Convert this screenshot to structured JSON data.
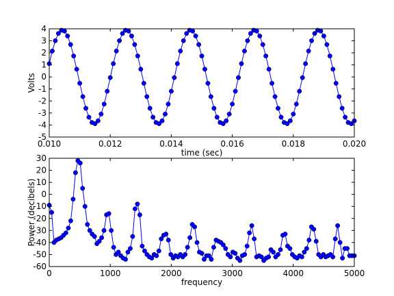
{
  "chart_data": [
    {
      "type": "line",
      "x_label": "time (sec)",
      "y_label": "Volts",
      "color": "#0000ff",
      "x": [
        0.01,
        0.0101,
        0.0102,
        0.0103,
        0.0104,
        0.0105,
        0.0106,
        0.0107,
        0.0108,
        0.0109,
        0.011,
        0.0111,
        0.0112,
        0.0113,
        0.0114,
        0.0115,
        0.0116,
        0.0117,
        0.0118,
        0.0119,
        0.012,
        0.0121,
        0.0122,
        0.0123,
        0.0124,
        0.0125,
        0.0126,
        0.0127,
        0.0128,
        0.0129,
        0.013,
        0.0131,
        0.0132,
        0.0133,
        0.0134,
        0.0135,
        0.0136,
        0.0137,
        0.0138,
        0.0139,
        0.014,
        0.0141,
        0.0142,
        0.0143,
        0.0144,
        0.0145,
        0.0146,
        0.0147,
        0.0148,
        0.0149,
        0.015,
        0.0151,
        0.0152,
        0.0153,
        0.0154,
        0.0155,
        0.0156,
        0.0157,
        0.0158,
        0.0159,
        0.016,
        0.0161,
        0.0162,
        0.0163,
        0.0164,
        0.0165,
        0.0166,
        0.0167,
        0.0168,
        0.0169,
        0.017,
        0.0171,
        0.0172,
        0.0173,
        0.0174,
        0.0175,
        0.0176,
        0.0177,
        0.0178,
        0.0179,
        0.018,
        0.0181,
        0.0182,
        0.0183,
        0.0184,
        0.0185,
        0.0186,
        0.0187,
        0.0188,
        0.0189,
        0.019,
        0.0191,
        0.0192,
        0.0193,
        0.0194,
        0.0195,
        0.0196,
        0.0197,
        0.0198,
        0.0199,
        0.02
      ],
      "values": [
        1.1,
        2.15,
        3.01,
        3.61,
        3.88,
        3.81,
        3.4,
        2.69,
        1.74,
        0.64,
        -0.53,
        -1.64,
        -2.61,
        -3.35,
        -3.79,
        -3.89,
        -3.65,
        -3.09,
        -2.26,
        -1.19,
        -0.06,
        1.1,
        2.15,
        3.01,
        3.61,
        3.88,
        3.81,
        3.4,
        2.69,
        1.74,
        0.64,
        -0.53,
        -1.64,
        -2.61,
        -3.35,
        -3.79,
        -3.89,
        -3.65,
        -3.09,
        -2.26,
        -1.19,
        -0.06,
        1.1,
        2.15,
        3.01,
        3.61,
        3.88,
        3.81,
        3.4,
        2.69,
        1.74,
        0.64,
        -0.53,
        -1.64,
        -2.61,
        -3.35,
        -3.79,
        -3.89,
        -3.65,
        -3.09,
        -2.26,
        -1.19,
        -0.06,
        1.1,
        2.15,
        3.01,
        3.61,
        3.88,
        3.81,
        3.4,
        2.69,
        1.74,
        0.64,
        -0.53,
        -1.64,
        -2.61,
        -3.35,
        -3.79,
        -3.89,
        -3.65,
        -3.09,
        -2.26,
        -1.19,
        -0.06,
        1.1,
        2.15,
        3.01,
        3.61,
        3.88,
        3.81,
        3.4,
        2.69,
        1.74,
        0.64,
        -0.53,
        -1.64,
        -2.61,
        -3.35,
        -3.79,
        -3.89,
        -3.65
      ],
      "xlim": [
        0.01,
        0.02
      ],
      "xticks": [
        {
          "value": 0.01,
          "label": "0.010"
        },
        {
          "value": 0.012,
          "label": "0.012"
        },
        {
          "value": 0.014,
          "label": "0.014"
        },
        {
          "value": 0.016,
          "label": "0.016"
        },
        {
          "value": 0.018,
          "label": "0.018"
        },
        {
          "value": 0.02,
          "label": "0.020"
        }
      ],
      "ylim": [
        -5,
        4
      ],
      "yticks": [
        -5,
        -4,
        -3,
        -2,
        -1,
        0,
        1,
        2,
        3,
        4
      ]
    },
    {
      "type": "line",
      "x_label": "frequency",
      "y_label": "Power (decibels)",
      "color": "#0000ff",
      "x": [
        0,
        39,
        78,
        117,
        156,
        195,
        234,
        273,
        313,
        352,
        391,
        430,
        469,
        508,
        547,
        586,
        625,
        664,
        703,
        742,
        781,
        820,
        859,
        898,
        938,
        977,
        1016,
        1055,
        1094,
        1133,
        1172,
        1211,
        1250,
        1289,
        1328,
        1367,
        1406,
        1445,
        1484,
        1523,
        1563,
        1602,
        1641,
        1680,
        1719,
        1758,
        1797,
        1836,
        1875,
        1914,
        1953,
        1992,
        2031,
        2070,
        2109,
        2148,
        2188,
        2227,
        2266,
        2305,
        2344,
        2383,
        2422,
        2461,
        2500,
        2539,
        2578,
        2617,
        2656,
        2695,
        2734,
        2773,
        2813,
        2852,
        2891,
        2930,
        2969,
        3008,
        3047,
        3086,
        3125,
        3164,
        3203,
        3242,
        3281,
        3320,
        3359,
        3398,
        3438,
        3477,
        3516,
        3555,
        3594,
        3633,
        3672,
        3711,
        3750,
        3789,
        3828,
        3867,
        3906,
        3945,
        3984,
        4023,
        4063,
        4102,
        4141,
        4180,
        4219,
        4258,
        4297,
        4336,
        4375,
        4414,
        4453,
        4492,
        4531,
        4570,
        4609,
        4648,
        4688,
        4727,
        4766,
        4805,
        4844,
        4883,
        4922,
        4961,
        5000
      ],
      "values": [
        -9,
        -15,
        -40,
        -38,
        -37,
        -36,
        -34,
        -32,
        -28,
        -22,
        -4,
        18,
        28,
        26,
        5,
        -10,
        -25,
        -30,
        -33,
        -35,
        -41,
        -39,
        -36,
        -30,
        -17,
        -16,
        -30,
        -44,
        -50,
        -48,
        -51,
        -53,
        -54,
        -48,
        -45,
        -35,
        -12,
        -8,
        -17,
        -43,
        -47,
        -50,
        -52,
        -53,
        -50,
        -51,
        -47,
        -37,
        -34,
        -33,
        -38,
        -50,
        -53,
        -51,
        -52,
        -50,
        -52,
        -50,
        -44,
        -36,
        -25,
        -27,
        -40,
        -48,
        -49,
        -54,
        -51,
        -51,
        -54,
        -44,
        -38,
        -39,
        -40,
        -42,
        -45,
        -50,
        -52,
        -48,
        -49,
        -53,
        -55,
        -51,
        -50,
        -43,
        -32,
        -26,
        -37,
        -52,
        -51,
        -52,
        -55,
        -53,
        -52,
        -46,
        -48,
        -52,
        -50,
        -46,
        -34,
        -33,
        -43,
        -45,
        -50,
        -52,
        -53,
        -51,
        -52,
        -48,
        -45,
        -38,
        -27,
        -29,
        -39,
        -50,
        -52,
        -50,
        -52,
        -51,
        -50,
        -52,
        -37,
        -26,
        -40,
        -53,
        -45,
        -45,
        -51,
        -51,
        -51
      ],
      "xlim": [
        0,
        5000
      ],
      "xticks": [
        0,
        1000,
        2000,
        3000,
        4000,
        5000
      ],
      "ylim": [
        -60,
        30
      ],
      "yticks": [
        -60,
        -50,
        -40,
        -30,
        -20,
        -10,
        0,
        10,
        20,
        30
      ]
    }
  ]
}
